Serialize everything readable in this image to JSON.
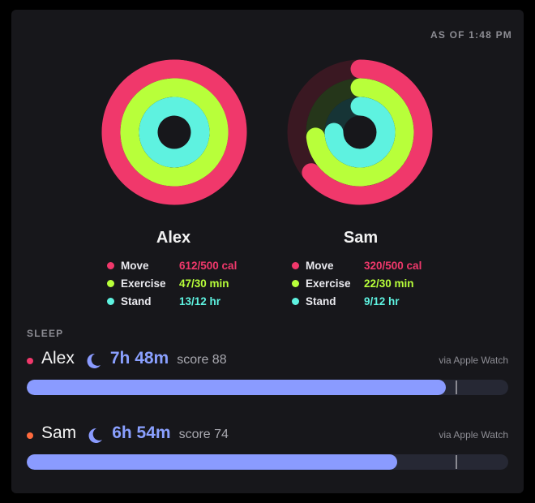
{
  "header": {
    "as_of": "AS OF 1:48 PM"
  },
  "colors": {
    "move": "#f0386b",
    "exercise": "#b8ff3a",
    "stand": "#5ef2e0",
    "sleep": "#8a9bff"
  },
  "people": [
    {
      "name": "Alex",
      "move": {
        "label": "Move",
        "value": "612/500 cal",
        "fraction": 1.224
      },
      "exercise": {
        "label": "Exercise",
        "value": "47/30 min",
        "fraction": 1.567
      },
      "stand": {
        "label": "Stand",
        "value": "13/12 hr",
        "fraction": 1.083
      }
    },
    {
      "name": "Sam",
      "move": {
        "label": "Move",
        "value": "320/500 cal",
        "fraction": 0.64
      },
      "exercise": {
        "label": "Exercise",
        "value": "22/30 min",
        "fraction": 0.733
      },
      "stand": {
        "label": "Stand",
        "value": "9/12 hr",
        "fraction": 0.75
      }
    }
  ],
  "sleep": {
    "title": "SLEEP",
    "entries": [
      {
        "name": "Alex",
        "dot_color": "#f0386b",
        "duration": "7h 48m",
        "score": "score 88",
        "source": "via Apple Watch",
        "fraction": 0.87,
        "goal_fraction": 0.89
      },
      {
        "name": "Sam",
        "dot_color": "#ff6a3d",
        "duration": "6h 54m",
        "score": "score 74",
        "source": "via Apple Watch",
        "fraction": 0.77,
        "goal_fraction": 0.89
      }
    ]
  }
}
